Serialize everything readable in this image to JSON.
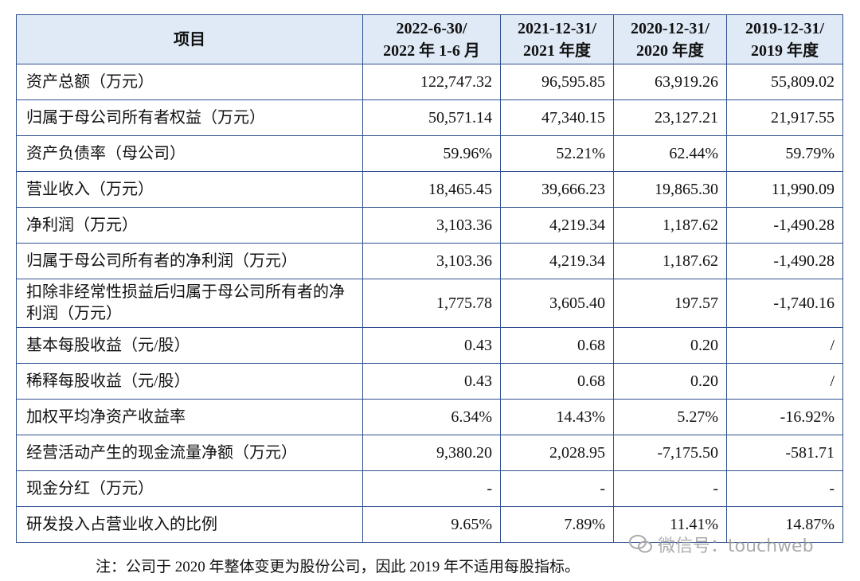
{
  "table": {
    "header": [
      "项目",
      "2022-6-30/\n2022 年 1-6 月",
      "2021-12-31/\n2021 年度",
      "2020-12-31/\n2020 年度",
      "2019-12-31/\n2019 年度"
    ],
    "rows": [
      [
        "资产总额（万元）",
        "122,747.32",
        "96,595.85",
        "63,919.26",
        "55,809.02"
      ],
      [
        "归属于母公司所有者权益（万元）",
        "50,571.14",
        "47,340.15",
        "23,127.21",
        "21,917.55"
      ],
      [
        "资产负债率（母公司）",
        "59.96%",
        "52.21%",
        "62.44%",
        "59.79%"
      ],
      [
        "营业收入（万元）",
        "18,465.45",
        "39,666.23",
        "19,865.30",
        "11,990.09"
      ],
      [
        "净利润（万元）",
        "3,103.36",
        "4,219.34",
        "1,187.62",
        "-1,490.28"
      ],
      [
        "归属于母公司所有者的净利润（万元）",
        "3,103.36",
        "4,219.34",
        "1,187.62",
        "-1,490.28"
      ],
      [
        "扣除非经常性损益后归属于母公司所有者的净利润（万元）",
        "1,775.78",
        "3,605.40",
        "197.57",
        "-1,740.16"
      ],
      [
        "基本每股收益（元/股）",
        "0.43",
        "0.68",
        "0.20",
        "/"
      ],
      [
        "稀释每股收益（元/股）",
        "0.43",
        "0.68",
        "0.20",
        "/"
      ],
      [
        "加权平均净资产收益率",
        "6.34%",
        "14.43%",
        "5.27%",
        "-16.92%"
      ],
      [
        "经营活动产生的现金流量净额（万元）",
        "9,380.20",
        "2,028.95",
        "-7,175.50",
        "-581.71"
      ],
      [
        "现金分红（万元）",
        "-",
        "-",
        "-",
        "-"
      ],
      [
        "研发投入占营业收入的比例",
        "9.65%",
        "7.89%",
        "11.41%",
        "14.87%"
      ]
    ]
  },
  "note": "注：公司于 2020 年整体变更为股份公司，因此 2019 年不适用每股指标。",
  "watermark": "微信号：touchweb"
}
